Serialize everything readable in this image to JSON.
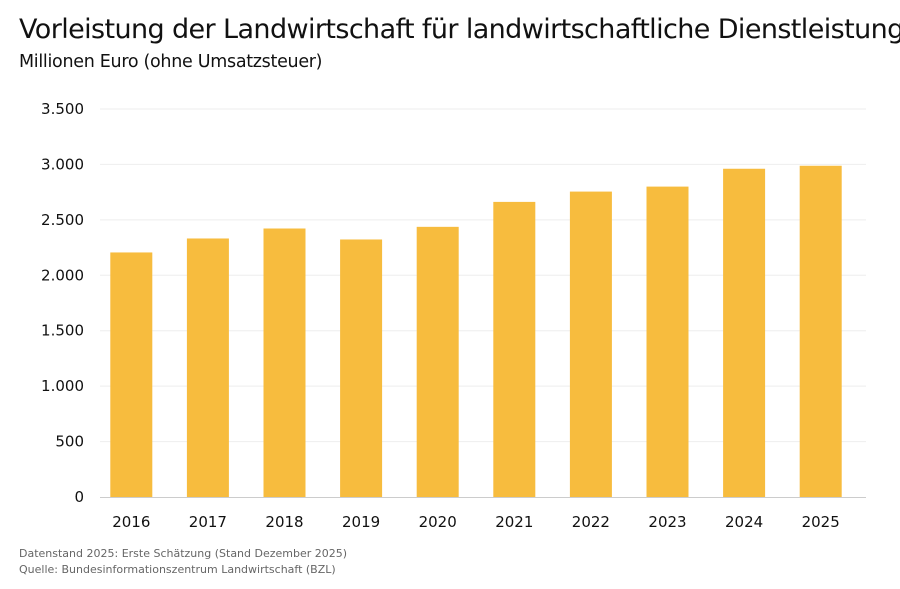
{
  "chart_data": {
    "type": "bar",
    "title": "Vorleistung der Landwirtschaft für landwirtschaftliche Dienstleistungen",
    "subtitle": "Millionen Euro (ohne Umsatzsteuer)",
    "xlabel": "",
    "ylabel": "",
    "categories": [
      "2016",
      "2017",
      "2018",
      "2019",
      "2020",
      "2021",
      "2022",
      "2023",
      "2024",
      "2025"
    ],
    "values": [
      2206,
      2332,
      2422,
      2323,
      2437,
      2662,
      2755,
      2800,
      2961,
      2988
    ],
    "ylim": [
      0,
      3500
    ],
    "yticks": [
      0,
      500,
      1000,
      1500,
      2000,
      2500,
      3000,
      3500
    ],
    "ytick_labels": [
      "0",
      "500",
      "1.000",
      "1.500",
      "2.000",
      "2.500",
      "3.000",
      "3.500"
    ],
    "grid": true,
    "bar_color": "#F7BC3E"
  },
  "footer": {
    "note": "Datenstand 2025: Erste Schätzung (Stand Dezember 2025)",
    "source": "Quelle: Bundesinformationszentrum Landwirtschaft (BZL)"
  }
}
